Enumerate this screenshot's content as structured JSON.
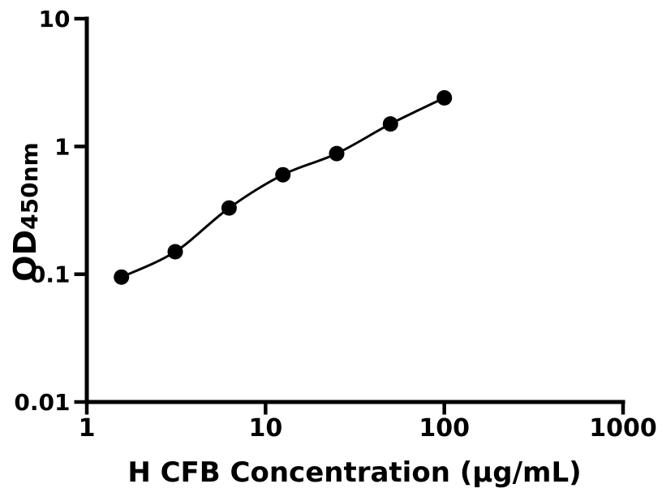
{
  "colors": {
    "foreground": "#000000",
    "background": "#ffffff"
  },
  "chart_data": {
    "type": "scatter",
    "title": "",
    "xlabel": "H CFB Concentration (μg/mL)",
    "ylabel_main": "OD",
    "ylabel_sub": "450nm",
    "x_scale": "log",
    "y_scale": "log",
    "xlim": [
      1,
      1000
    ],
    "ylim": [
      0.01,
      10
    ],
    "grid": false,
    "legend": "none",
    "x_ticks": {
      "values": [
        1,
        10,
        100,
        1000
      ],
      "labels": [
        "1",
        "10",
        "100",
        "1000"
      ]
    },
    "y_ticks": {
      "values": [
        0.01,
        0.1,
        1,
        10
      ],
      "labels": [
        "0.01",
        "0.1",
        "1",
        "10"
      ]
    },
    "series": [
      {
        "marker": "filled-circle",
        "line": "smooth-fit-curve",
        "color": "#000000",
        "x": [
          1.5625,
          3.125,
          6.25,
          12.5,
          25,
          50,
          100
        ],
        "y": [
          0.095,
          0.15,
          0.33,
          0.6,
          0.88,
          1.5,
          2.4
        ]
      }
    ]
  }
}
